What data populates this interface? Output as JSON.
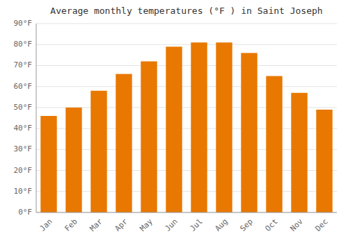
{
  "chart_data": {
    "type": "bar",
    "title": "Average monthly temperatures (°F ) in Saint Joseph",
    "categories": [
      "Jan",
      "Feb",
      "Mar",
      "Apr",
      "May",
      "Jun",
      "Jul",
      "Aug",
      "Sep",
      "Oct",
      "Nov",
      "Dec"
    ],
    "values": [
      46,
      50,
      58,
      66,
      72,
      79,
      81,
      81,
      76,
      65,
      57,
      49
    ],
    "color": "#E87800",
    "ylim": [
      0,
      90
    ],
    "yticks": [
      {
        "value": 0,
        "label": "0°F"
      },
      {
        "value": 10,
        "label": "10°F"
      },
      {
        "value": 20,
        "label": "20°F"
      },
      {
        "value": 30,
        "label": "30°F"
      },
      {
        "value": 40,
        "label": "40°F"
      },
      {
        "value": 50,
        "label": "50°F"
      },
      {
        "value": 60,
        "label": "60°F"
      },
      {
        "value": 70,
        "label": "70°F"
      },
      {
        "value": 80,
        "label": "80°F"
      },
      {
        "value": 90,
        "label": "90°F"
      }
    ],
    "grid": true
  }
}
